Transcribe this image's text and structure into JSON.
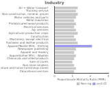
{
  "chart_data": {
    "type": "bar",
    "orientation": "horizontal",
    "title": "Industry",
    "x_label": "Proportionate Mortality Ratio (PMR)",
    "categories": [
      "Air + Water transport",
      "Trucking service",
      "Non-construction, mineral, gravel",
      "Motor vehicles and parts",
      "Metal industries",
      "Prefabricated wood products",
      "Electrical services",
      "Ag. services",
      "Agricultural production crops",
      "Construction",
      "Machinery, except electrical",
      "Footwear and leather products",
      "Apparel/Textile Mills - Knitting",
      "Newspaper publishing",
      "Apparel and Hosiery",
      "Apparel/other Mfrs - Woollen",
      "Chemicals and allied products",
      "Sale of stores",
      "Non-store retailers",
      "Furniture and home furnishings stores",
      "Educational services"
    ],
    "series": [
      {
        "name": "Non-sig",
        "color": "#c8c8c8",
        "values": [
          1.3,
          1.2,
          1.3,
          1.2,
          1.1,
          1.2,
          1.1,
          1.2,
          1.3,
          1.1,
          1.2,
          1.3,
          null,
          1.2,
          1.1,
          1.2,
          1.1,
          1.0,
          1.1,
          1.2,
          1.1
        ]
      },
      {
        "name": "p<0.01",
        "color": "#9999ee",
        "values": [
          null,
          null,
          null,
          null,
          null,
          null,
          null,
          null,
          null,
          null,
          null,
          null,
          2.1,
          null,
          null,
          null,
          null,
          null,
          null,
          null,
          null
        ]
      }
    ],
    "xlim": [
      0,
      3
    ],
    "xticks": [
      0,
      1,
      2,
      3
    ],
    "grid": false,
    "legend": "bottom right"
  }
}
